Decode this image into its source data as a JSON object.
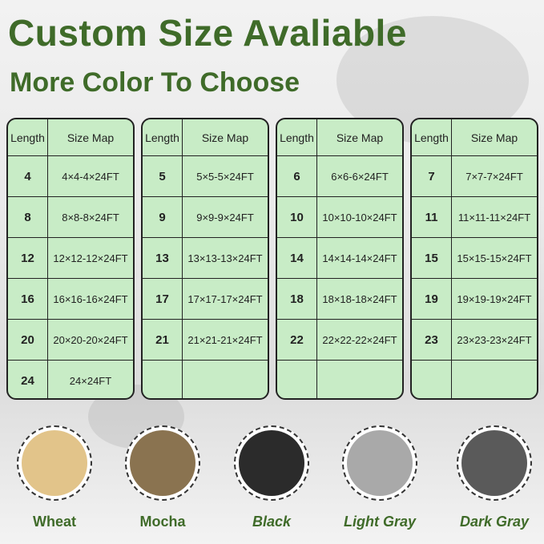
{
  "header": {
    "title": "Custom Size Avaliable",
    "subtitle": "More Color To Choose"
  },
  "tables": [
    {
      "col1": "Length",
      "col2": "Size Map",
      "rows": [
        [
          "4",
          "4×4-4×24FT"
        ],
        [
          "8",
          "8×8-8×24FT"
        ],
        [
          "12",
          "12×12-12×24FT"
        ],
        [
          "16",
          "16×16-16×24FT"
        ],
        [
          "20",
          "20×20-20×24FT"
        ],
        [
          "24",
          "24×24FT"
        ]
      ]
    },
    {
      "col1": "Length",
      "col2": "Size Map",
      "rows": [
        [
          "5",
          "5×5-5×24FT"
        ],
        [
          "9",
          "9×9-9×24FT"
        ],
        [
          "13",
          "13×13-13×24FT"
        ],
        [
          "17",
          "17×17-17×24FT"
        ],
        [
          "21",
          "21×21-21×24FT"
        ],
        [
          "",
          ""
        ]
      ]
    },
    {
      "col1": "Length",
      "col2": "Size Map",
      "rows": [
        [
          "6",
          "6×6-6×24FT"
        ],
        [
          "10",
          "10×10-10×24FT"
        ],
        [
          "14",
          "14×14-14×24FT"
        ],
        [
          "18",
          "18×18-18×24FT"
        ],
        [
          "22",
          "22×22-22×24FT"
        ],
        [
          "",
          ""
        ]
      ]
    },
    {
      "col1": "Length",
      "col2": "Size Map",
      "rows": [
        [
          "7",
          "7×7-7×24FT"
        ],
        [
          "11",
          "11×11-11×24FT"
        ],
        [
          "15",
          "15×15-15×24FT"
        ],
        [
          "19",
          "19×19-19×24FT"
        ],
        [
          "23",
          "23×23-23×24FT"
        ],
        [
          "",
          ""
        ]
      ]
    }
  ],
  "colors": [
    {
      "label": "Wheat",
      "swatch": "#e2c48a",
      "italic": false
    },
    {
      "label": "Mocha",
      "swatch": "#8a7350",
      "italic": false
    },
    {
      "label": "Black",
      "swatch": "#2b2b2b",
      "italic": true
    },
    {
      "label": "Light Gray",
      "swatch": "#a9a9a9",
      "italic": true
    },
    {
      "label": "Dark Gray",
      "swatch": "#5a5a5a",
      "italic": true
    }
  ]
}
